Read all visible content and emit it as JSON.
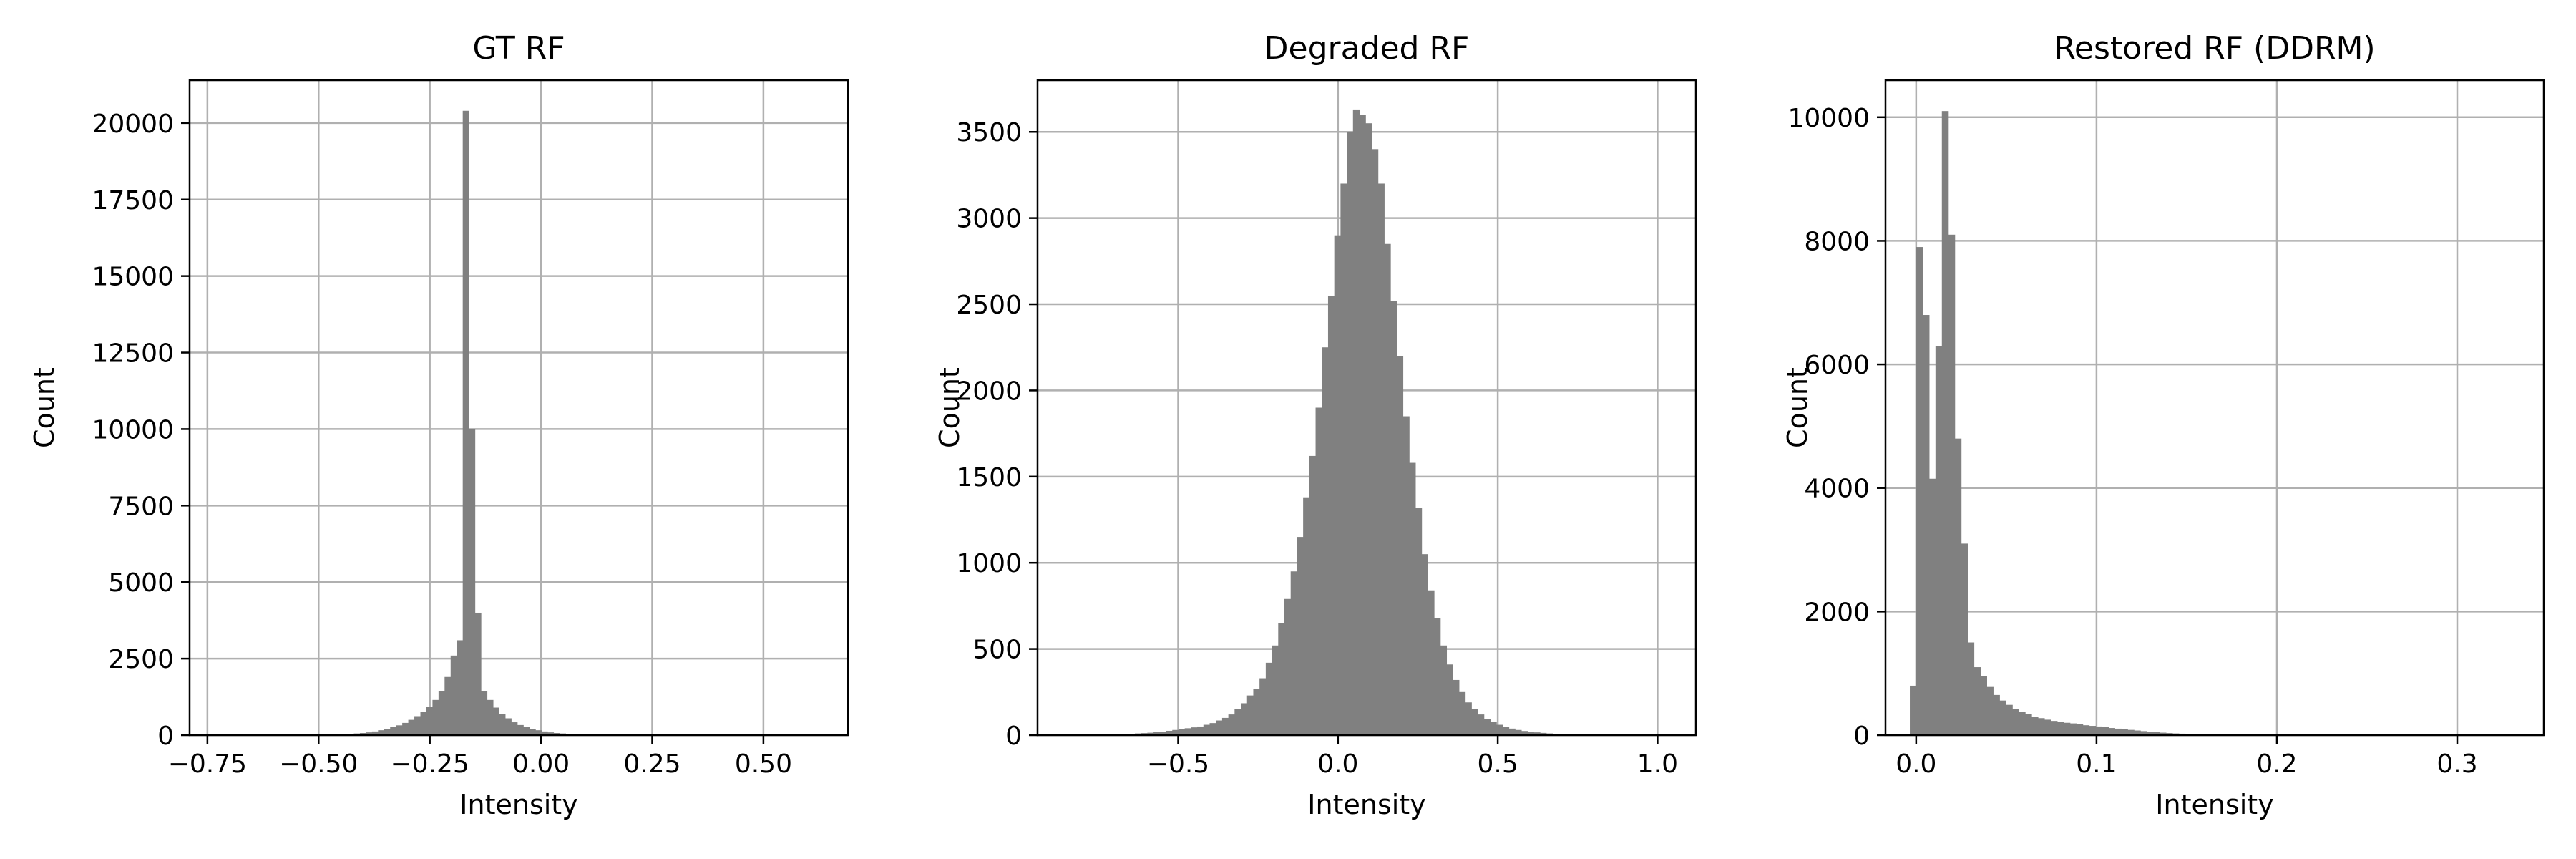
{
  "chart_data": [
    {
      "type": "bar",
      "title": "GT RF",
      "xlabel": "Intensity",
      "ylabel": "Count",
      "xlim": [
        -0.79,
        0.69
      ],
      "ylim": [
        0,
        21400
      ],
      "xticks": [
        -0.75,
        -0.5,
        -0.25,
        0.0,
        0.25,
        0.5
      ],
      "xtick_labels": [
        "−0.75",
        "−0.50",
        "−0.25",
        "0.00",
        "0.25",
        "0.50"
      ],
      "yticks": [
        0,
        2500,
        5000,
        7500,
        10000,
        12500,
        15000,
        17500,
        20000
      ],
      "ytick_labels": [
        "0",
        "2500",
        "5000",
        "7500",
        "10000",
        "12500",
        "15000",
        "17500",
        "20000"
      ],
      "grid": true,
      "bar_color": "#808080",
      "bins": {
        "start": -0.72,
        "width": 0.0136,
        "counts": [
          5,
          5,
          5,
          5,
          5,
          5,
          5,
          5,
          10,
          10,
          10,
          10,
          10,
          15,
          15,
          20,
          25,
          25,
          30,
          35,
          40,
          45,
          55,
          70,
          90,
          120,
          160,
          210,
          260,
          320,
          400,
          500,
          620,
          760,
          930,
          1150,
          1450,
          1900,
          2600,
          3100,
          20400,
          10000,
          4000,
          1450,
          1150,
          900,
          700,
          550,
          420,
          330,
          260,
          200,
          160,
          120,
          90,
          70,
          55,
          45,
          35,
          30,
          25,
          20,
          15,
          12,
          10,
          8,
          6,
          5,
          5,
          5,
          5,
          5,
          5,
          5,
          5,
          5,
          5,
          5,
          5,
          5
        ]
      }
    },
    {
      "type": "bar",
      "title": "Degraded RF",
      "xlabel": "Intensity",
      "ylabel": "Count",
      "xlim": [
        -0.94,
        1.12
      ],
      "ylim": [
        0,
        3800
      ],
      "xticks": [
        -0.5,
        0.0,
        0.5,
        1.0
      ],
      "xtick_labels": [
        "−0.5",
        "0.0",
        "0.5",
        "1.0"
      ],
      "yticks": [
        0,
        500,
        1000,
        1500,
        2000,
        2500,
        3000,
        3500
      ],
      "ytick_labels": [
        "0",
        "500",
        "1000",
        "1500",
        "2000",
        "2500",
        "3000",
        "3500"
      ],
      "grid": true,
      "bar_color": "#808080",
      "bins": {
        "start": -0.85,
        "width": 0.0195,
        "counts": [
          1,
          1,
          1,
          2,
          2,
          3,
          3,
          4,
          5,
          6,
          8,
          10,
          12,
          14,
          17,
          20,
          25,
          30,
          35,
          40,
          45,
          50,
          60,
          70,
          85,
          100,
          120,
          150,
          185,
          230,
          270,
          330,
          420,
          520,
          650,
          790,
          950,
          1150,
          1380,
          1620,
          1900,
          2250,
          2550,
          2900,
          3200,
          3500,
          3630,
          3600,
          3550,
          3400,
          3200,
          2850,
          2520,
          2200,
          1850,
          1580,
          1320,
          1050,
          840,
          680,
          520,
          410,
          320,
          250,
          190,
          150,
          120,
          95,
          75,
          60,
          48,
          38,
          30,
          24,
          20,
          16,
          13,
          10,
          8,
          6,
          5,
          4,
          3,
          2,
          2,
          1,
          1,
          1,
          1,
          1
        ]
      }
    },
    {
      "type": "bar",
      "title": "Restored RF (DDRM)",
      "xlabel": "Intensity",
      "ylabel": "Count",
      "xlim": [
        -0.017,
        0.348
      ],
      "ylim": [
        0,
        10600
      ],
      "xticks": [
        0.0,
        0.1,
        0.2,
        0.3
      ],
      "xtick_labels": [
        "0.0",
        "0.1",
        "0.2",
        "0.3"
      ],
      "yticks": [
        0,
        2000,
        4000,
        6000,
        8000,
        10000
      ],
      "ytick_labels": [
        "0",
        "2000",
        "4000",
        "6000",
        "8000",
        "10000"
      ],
      "grid": true,
      "bar_color": "#808080",
      "bins": {
        "start": -0.0035,
        "width": 0.00355,
        "counts": [
          800,
          7900,
          6800,
          4150,
          6300,
          10100,
          8100,
          4800,
          3100,
          1500,
          1100,
          950,
          780,
          650,
          560,
          490,
          420,
          380,
          340,
          300,
          275,
          250,
          230,
          210,
          200,
          190,
          175,
          160,
          150,
          140,
          128,
          115,
          105,
          95,
          85,
          75,
          65,
          56,
          48,
          40,
          34,
          28,
          24,
          20,
          16,
          13,
          11,
          9,
          8,
          7,
          6,
          5,
          5,
          4,
          4,
          3,
          3,
          3,
          2,
          2,
          2,
          2,
          2,
          1,
          1,
          1,
          1,
          1,
          1,
          1,
          1,
          1,
          1,
          1,
          1,
          1,
          1,
          1,
          1,
          1,
          1,
          1,
          1,
          1,
          1,
          1,
          1,
          1,
          1,
          1,
          1,
          1,
          1,
          1,
          1,
          1,
          1
        ]
      }
    }
  ]
}
